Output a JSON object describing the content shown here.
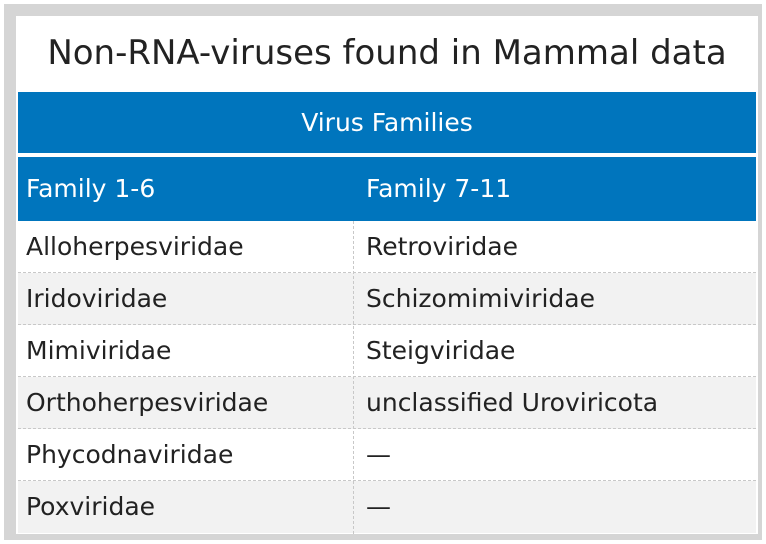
{
  "title": "Non-RNA-viruses found in Mammal data",
  "table": {
    "group_header": "Virus Families",
    "columns": [
      "Family 1-6",
      "Family 7-11"
    ],
    "rows": [
      [
        "Alloherpesviridae",
        "Retroviridae"
      ],
      [
        "Iridoviridae",
        "Schizomimiviridae"
      ],
      [
        "Mimiviridae",
        "Steigviridae"
      ],
      [
        "Orthoherpesviridae",
        "unclassified Uroviricota"
      ],
      [
        "Phycodnaviridae",
        "—"
      ],
      [
        "Poxviridae",
        "—"
      ]
    ]
  },
  "colors": {
    "header_bg": "#0075bd",
    "header_text": "#ffffff",
    "alt_row_bg": "#f2f2f2",
    "frame": "#d5d5d5"
  }
}
